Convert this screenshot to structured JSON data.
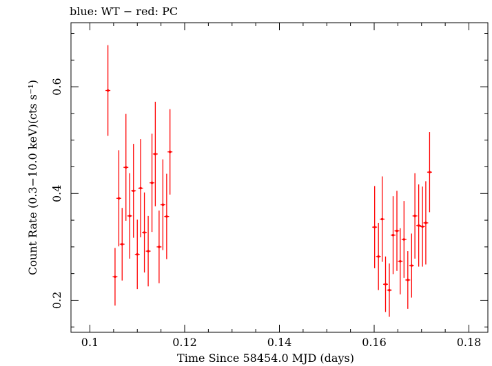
{
  "chart_data": {
    "type": "scatter",
    "title": "blue: WT − red: PC",
    "xlabel": "Time Since 58454.0 MJD (days)",
    "ylabel": "Count Rate (0.3−10.0 keV)(cts s⁻¹)",
    "xlim": [
      0.096,
      0.184
    ],
    "ylim": [
      0.14,
      0.72
    ],
    "xticks": [
      0.1,
      0.12,
      0.14,
      0.16,
      0.18
    ],
    "xtick_labels": [
      "0.1",
      "0.12",
      "0.14",
      "0.16",
      "0.18"
    ],
    "yticks": [
      0.2,
      0.4,
      0.6
    ],
    "ytick_labels": [
      "0.2",
      "0.4",
      "0.6"
    ],
    "grid": false,
    "series": [
      {
        "color": "#ff0000",
        "points": [
          {
            "x": 0.1038,
            "y": 0.593,
            "yerr": 0.085
          },
          {
            "x": 0.1053,
            "y": 0.244,
            "yerr": 0.054
          },
          {
            "x": 0.1061,
            "y": 0.391,
            "yerr": 0.09
          },
          {
            "x": 0.1068,
            "y": 0.305,
            "yerr": 0.068
          },
          {
            "x": 0.1076,
            "y": 0.449,
            "yerr": 0.1
          },
          {
            "x": 0.1084,
            "y": 0.358,
            "yerr": 0.08
          },
          {
            "x": 0.1092,
            "y": 0.405,
            "yerr": 0.088
          },
          {
            "x": 0.11,
            "y": 0.286,
            "yerr": 0.065
          },
          {
            "x": 0.1107,
            "y": 0.41,
            "yerr": 0.092
          },
          {
            "x": 0.1115,
            "y": 0.327,
            "yerr": 0.075
          },
          {
            "x": 0.1123,
            "y": 0.292,
            "yerr": 0.066
          },
          {
            "x": 0.1131,
            "y": 0.42,
            "yerr": 0.092
          },
          {
            "x": 0.1138,
            "y": 0.474,
            "yerr": 0.098
          },
          {
            "x": 0.1146,
            "y": 0.3,
            "yerr": 0.068
          },
          {
            "x": 0.1154,
            "y": 0.379,
            "yerr": 0.085
          },
          {
            "x": 0.1162,
            "y": 0.357,
            "yerr": 0.08
          },
          {
            "x": 0.1169,
            "y": 0.478,
            "yerr": 0.08
          },
          {
            "x": 0.1601,
            "y": 0.337,
            "yerr": 0.077
          },
          {
            "x": 0.1609,
            "y": 0.282,
            "yerr": 0.063
          },
          {
            "x": 0.1617,
            "y": 0.352,
            "yerr": 0.08
          },
          {
            "x": 0.1624,
            "y": 0.23,
            "yerr": 0.052
          },
          {
            "x": 0.1632,
            "y": 0.219,
            "yerr": 0.05
          },
          {
            "x": 0.164,
            "y": 0.322,
            "yerr": 0.073
          },
          {
            "x": 0.1648,
            "y": 0.33,
            "yerr": 0.075
          },
          {
            "x": 0.1655,
            "y": 0.273,
            "yerr": 0.062
          },
          {
            "x": 0.1663,
            "y": 0.314,
            "yerr": 0.072
          },
          {
            "x": 0.1671,
            "y": 0.238,
            "yerr": 0.054
          },
          {
            "x": 0.1679,
            "y": 0.265,
            "yerr": 0.06
          },
          {
            "x": 0.1686,
            "y": 0.358,
            "yerr": 0.08
          },
          {
            "x": 0.1694,
            "y": 0.34,
            "yerr": 0.077
          },
          {
            "x": 0.1702,
            "y": 0.338,
            "yerr": 0.075
          },
          {
            "x": 0.1709,
            "y": 0.345,
            "yerr": 0.078
          },
          {
            "x": 0.1717,
            "y": 0.44,
            "yerr": 0.075
          }
        ]
      }
    ]
  }
}
